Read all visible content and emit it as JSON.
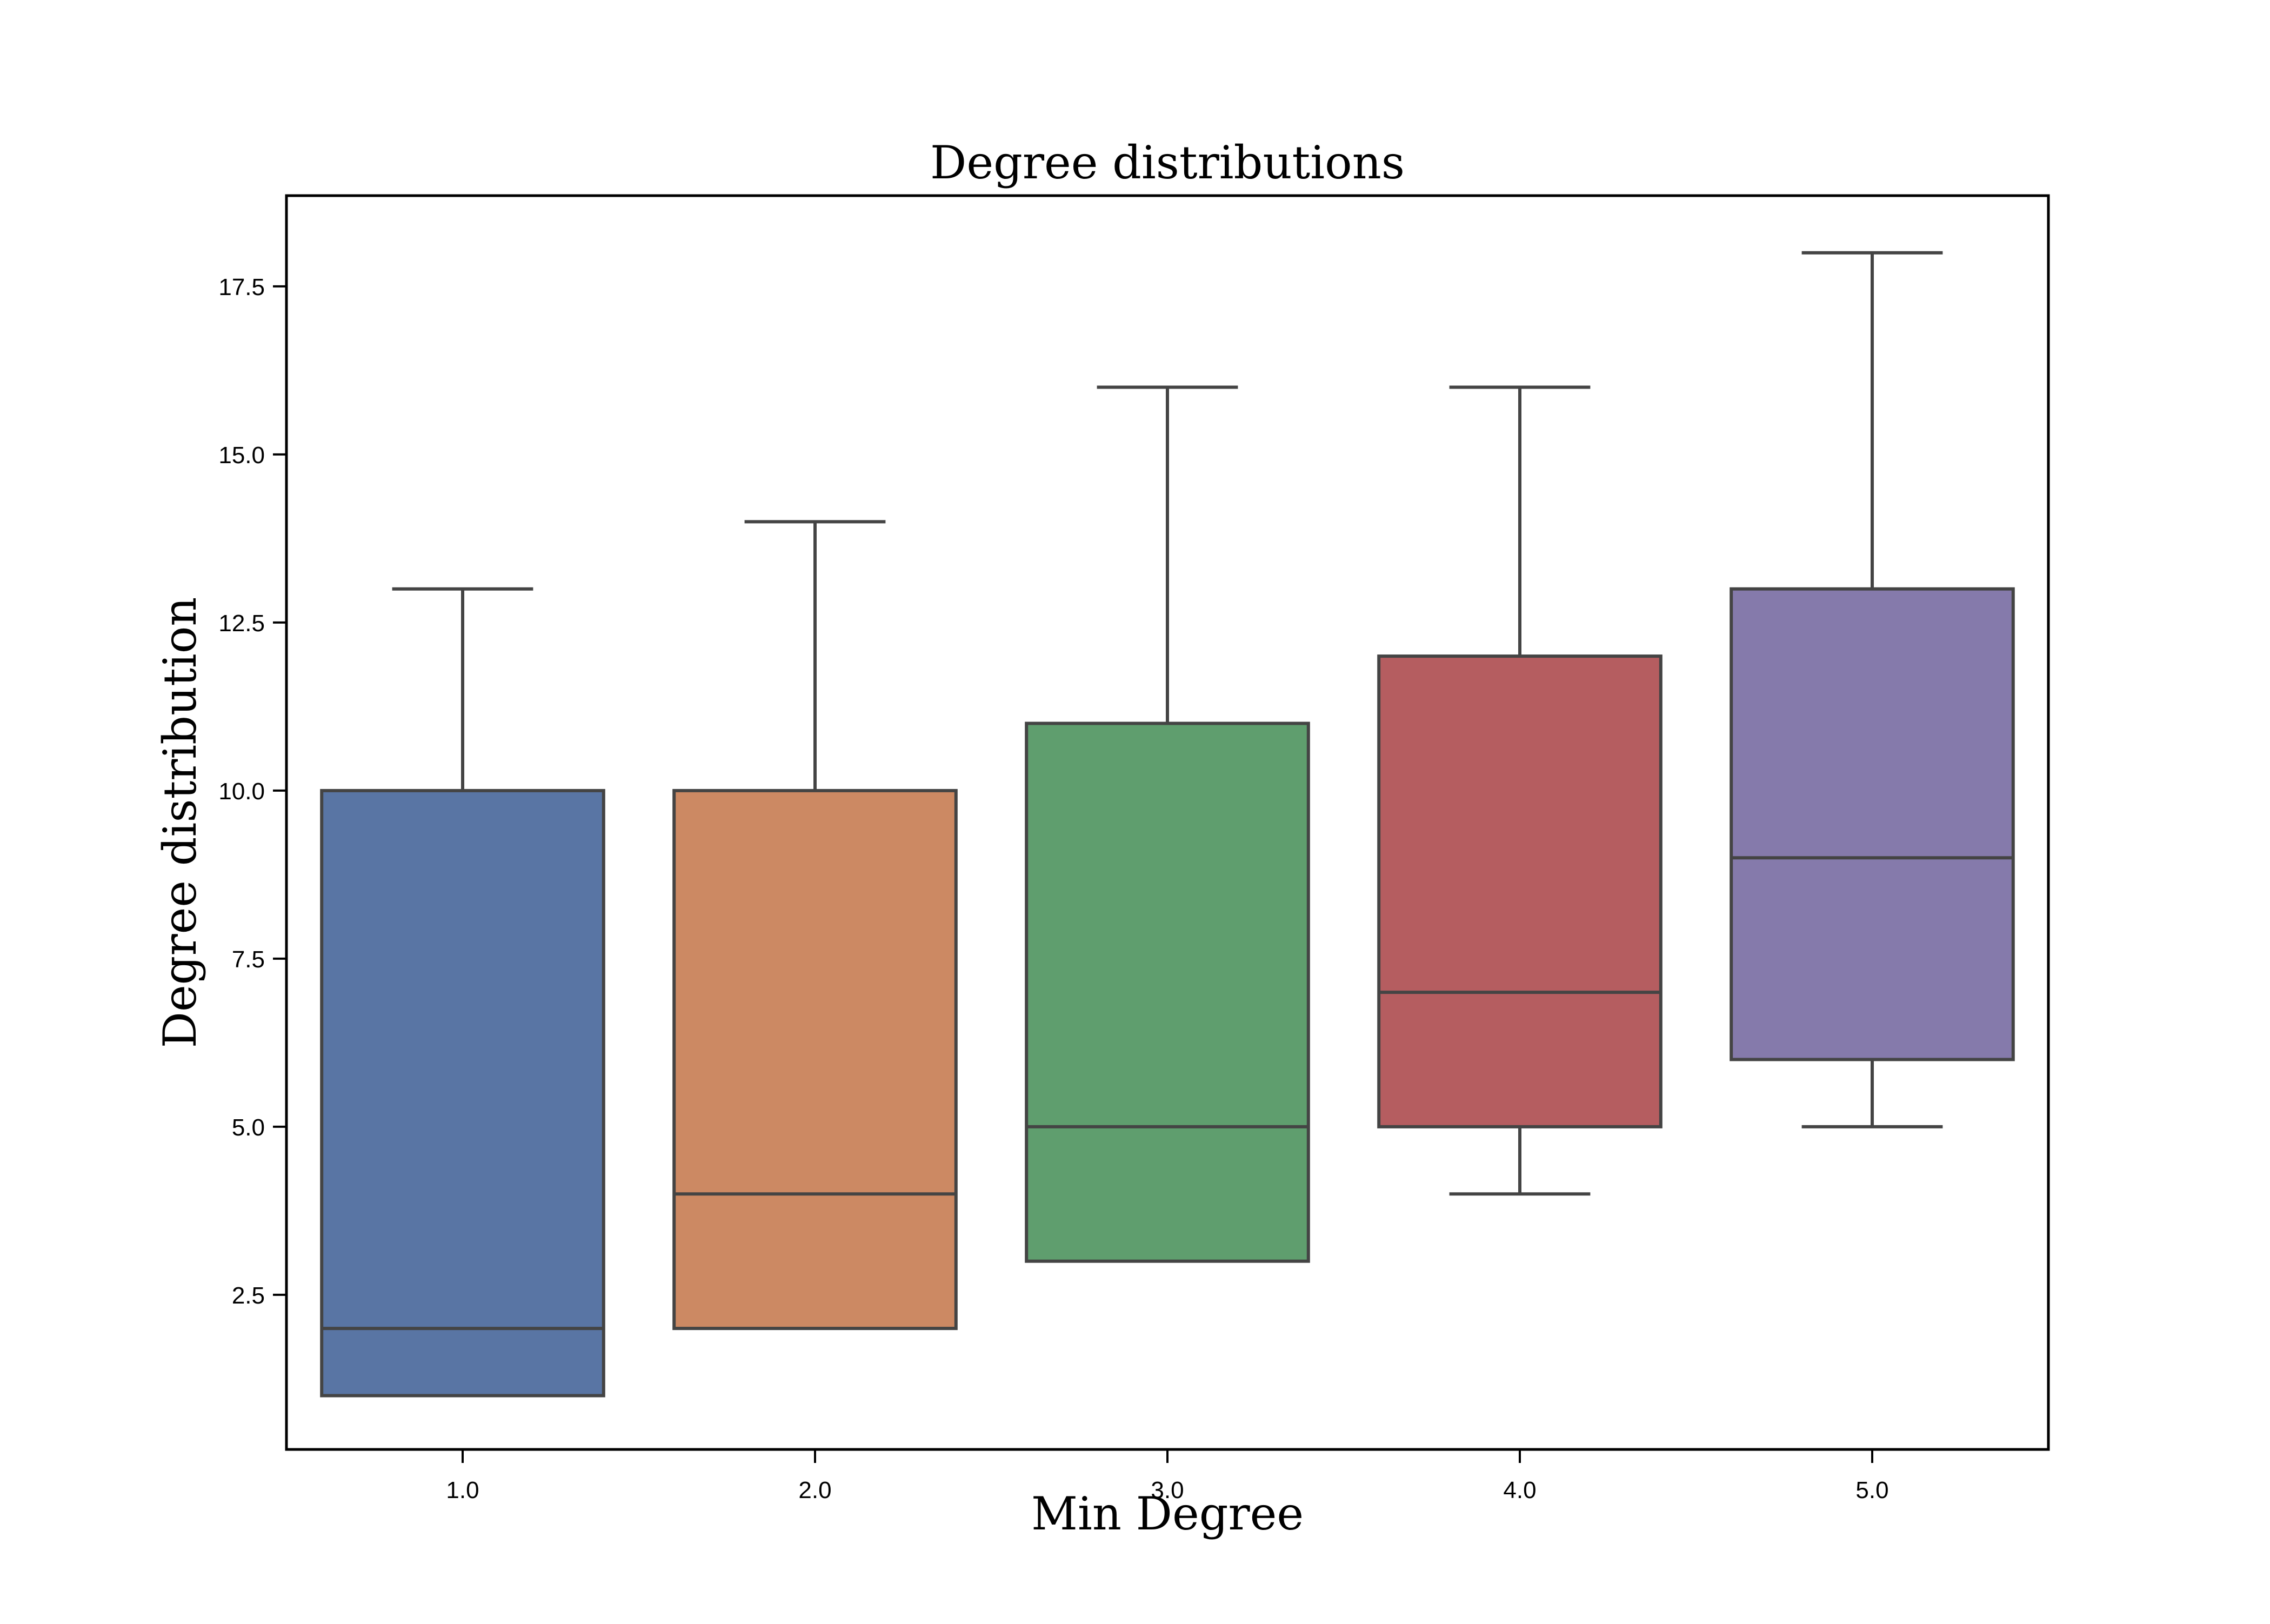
{
  "chart_data": {
    "type": "box",
    "title": "Degree distributions",
    "xlabel": "Min Degree",
    "ylabel": "Degree distribution",
    "categories": [
      "1.0",
      "2.0",
      "3.0",
      "4.0",
      "5.0"
    ],
    "ylim": [
      0.2,
      18.85
    ],
    "yticks": [
      2.5,
      5.0,
      7.5,
      10.0,
      12.5,
      15.0,
      17.5
    ],
    "ytick_labels": [
      "2.5",
      "5.0",
      "7.5",
      "10.0",
      "12.5",
      "15.0",
      "17.5"
    ],
    "grid": false,
    "boxes": [
      {
        "category": "1.0",
        "whisker_low": 1,
        "q1": 1,
        "median": 2,
        "q3": 10,
        "whisker_high": 13,
        "color": "#5975a4"
      },
      {
        "category": "2.0",
        "whisker_low": 2,
        "q1": 2,
        "median": 4,
        "q3": 10,
        "whisker_high": 14,
        "color": "#cc8963"
      },
      {
        "category": "3.0",
        "whisker_low": 3,
        "q1": 3,
        "median": 5,
        "q3": 11,
        "whisker_high": 16,
        "color": "#5f9e6e"
      },
      {
        "category": "4.0",
        "whisker_low": 4,
        "q1": 5,
        "median": 7,
        "q3": 12,
        "whisker_high": 16,
        "color": "#b55d60"
      },
      {
        "category": "5.0",
        "whisker_low": 5,
        "q1": 6,
        "median": 9,
        "q3": 13,
        "whisker_high": 18,
        "color": "#857aab"
      }
    ]
  }
}
